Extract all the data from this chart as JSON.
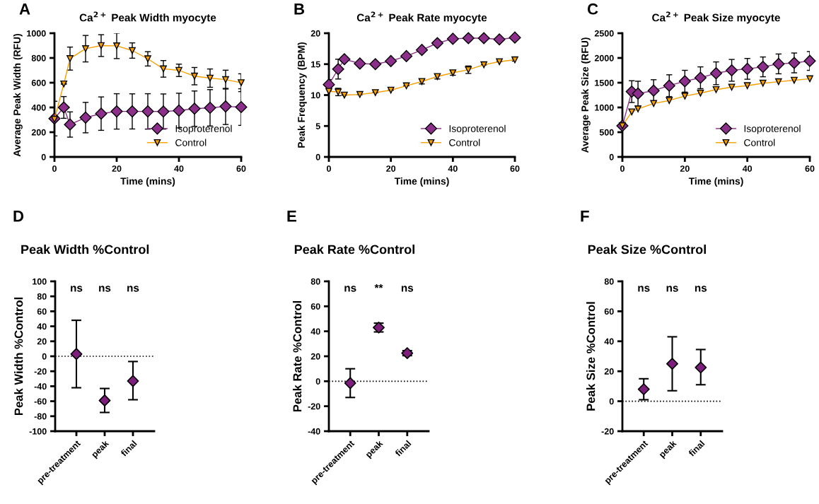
{
  "chart_data": [
    {
      "type": "line",
      "title": "Ca$^{2+}$ Peak Width myocyte",
      "xlabel": "Time (mins)",
      "ylabel": "Average Peak Width (RFU)",
      "annotations": [
        "A"
      ],
      "x": [
        0,
        3,
        5,
        10,
        15,
        20,
        25,
        30,
        35,
        40,
        45,
        50,
        55,
        60
      ],
      "xlim": [
        0,
        60
      ],
      "xticks": [
        0,
        20,
        40,
        60
      ],
      "ylim": [
        0,
        1000
      ],
      "yticks": [
        0,
        200,
        400,
        600,
        800,
        1000
      ],
      "grid": false,
      "legend": "bottom right",
      "series": [
        {
          "name": "Isoproterenol",
          "color": "#8b2f8b",
          "marker": "diamond",
          "values": [
            310,
            400,
            262,
            318,
            350,
            368,
            368,
            368,
            367,
            375,
            390,
            397,
            408,
            403
          ],
          "errors": [
            140,
            88,
            102,
            123,
            135,
            143,
            142,
            143,
            142,
            140,
            143,
            147,
            146,
            148
          ]
        },
        {
          "name": "Control",
          "color": "#f5a000",
          "marker": "triangle",
          "values": [
            305,
            590,
            795,
            875,
            900,
            898,
            860,
            793,
            712,
            700,
            653,
            637,
            625,
            600
          ],
          "errors": [
            null,
            null,
            93,
            107,
            88,
            103,
            62,
            58,
            67,
            50,
            70,
            74,
            76,
            72
          ]
        }
      ]
    },
    {
      "type": "line",
      "title": "Ca$^{2+}$ Peak Rate myocyte",
      "xlabel": "Time (mins)",
      "ylabel": "Peak Frequency (BPM)",
      "annotations": [
        "B"
      ],
      "x": [
        0,
        3,
        5,
        10,
        15,
        20,
        25,
        30,
        35,
        40,
        45,
        50,
        55,
        60
      ],
      "xlim": [
        0,
        60
      ],
      "xticks": [
        0,
        20,
        40,
        60
      ],
      "ylim": [
        0,
        20
      ],
      "yticks": [
        0,
        5,
        10,
        15,
        20
      ],
      "grid": false,
      "legend": "bottom right",
      "series": [
        {
          "name": "Isoproterenol",
          "color": "#8b2f8b",
          "marker": "diamond",
          "values": [
            11.7,
            14.2,
            15.8,
            15.1,
            15.0,
            15.5,
            16.3,
            17.3,
            18.4,
            19.1,
            19.2,
            19.2,
            19.0,
            19.3
          ],
          "errors": [
            0.8,
            1.6,
            null,
            null,
            0.4,
            null,
            null,
            null,
            null,
            null,
            0.5,
            null,
            null,
            null
          ]
        },
        {
          "name": "Control",
          "color": "#f5a000",
          "marker": "triangle",
          "values": [
            10.6,
            10.5,
            10.0,
            10.1,
            10.4,
            10.8,
            11.5,
            12.2,
            13.0,
            13.6,
            14.1,
            14.9,
            15.4,
            15.7
          ],
          "errors": [
            null,
            0.6,
            null,
            null,
            null,
            null,
            null,
            0.4,
            0.4,
            0.4,
            0.6,
            null,
            null,
            0.2
          ]
        }
      ]
    },
    {
      "type": "line",
      "title": "Ca$^{2+}$ Peak Size myocyte",
      "xlabel": "Time (mins)",
      "ylabel": "Average Peak Size (RFU)",
      "annotations": [
        "C"
      ],
      "x": [
        0,
        3,
        5,
        10,
        15,
        20,
        25,
        30,
        35,
        40,
        45,
        50,
        55,
        60
      ],
      "xlim": [
        0,
        60
      ],
      "xticks": [
        0,
        20,
        40,
        60
      ],
      "ylim": [
        0,
        2500
      ],
      "yticks": [
        0,
        500,
        1000,
        1500,
        2000,
        2500
      ],
      "grid": false,
      "legend": "bottom right",
      "series": [
        {
          "name": "Isoproterenol",
          "color": "#8b2f8b",
          "marker": "diamond",
          "values": [
            630,
            1320,
            1280,
            1340,
            1440,
            1530,
            1600,
            1690,
            1750,
            1780,
            1820,
            1880,
            1900,
            1940
          ],
          "errors": [
            null,
            220,
            250,
            220,
            220,
            220,
            220,
            230,
            220,
            210,
            200,
            200,
            200,
            190
          ]
        },
        {
          "name": "Control",
          "color": "#f5a000",
          "marker": "triangle",
          "values": [
            630,
            910,
            970,
            1080,
            1140,
            1230,
            1290,
            1360,
            1410,
            1440,
            1490,
            1520,
            1550,
            1580
          ]
        }
      ]
    },
    {
      "type": "scatter",
      "title": "Peak Width %Control",
      "ylabel": "Peak Width %Control",
      "categories": [
        "pre-treatment",
        "peak",
        "final"
      ],
      "color": "#7d1e7d",
      "marker": "diamond",
      "values": [
        3,
        -59,
        -33
      ],
      "errors": [
        [
          -42,
          48
        ],
        [
          -75,
          -43
        ],
        [
          -58,
          -7
        ]
      ],
      "ylim": [
        -100,
        100
      ],
      "yticks": [
        -100,
        -80,
        -60,
        -40,
        -20,
        0,
        20,
        40,
        60,
        80,
        100
      ],
      "grid": false,
      "ref_lines": [
        {
          "axis": "y",
          "value": 0,
          "line_style": "dotted"
        }
      ],
      "annotations": [
        "D",
        "ns",
        "ns",
        "ns"
      ]
    },
    {
      "type": "scatter",
      "title": "Peak Rate %Control",
      "ylabel": "Peak Rate %Control",
      "categories": [
        "pre-treatment",
        "peak",
        "final"
      ],
      "color": "#7d1e7d",
      "marker": "diamond",
      "values": [
        -1.5,
        43,
        22.5
      ],
      "errors": [
        [
          -13,
          10
        ],
        [
          39.5,
          46.5
        ],
        [
          20.5,
          24.5
        ]
      ],
      "ylim": [
        -40,
        80
      ],
      "yticks": [
        -40,
        -20,
        0,
        20,
        40,
        60,
        80
      ],
      "grid": false,
      "ref_lines": [
        {
          "axis": "y",
          "value": 0,
          "line_style": "dotted"
        }
      ],
      "annotations": [
        "E",
        "ns",
        "**",
        "ns"
      ]
    },
    {
      "type": "scatter",
      "title": "Peak Size %Control",
      "ylabel": "Peak Size %Control",
      "categories": [
        "pre-treatment",
        "peak",
        "final"
      ],
      "color": "#7d1e7d",
      "marker": "diamond",
      "values": [
        8,
        25,
        22.5
      ],
      "errors": [
        [
          1,
          15
        ],
        [
          7,
          43
        ],
        [
          11,
          34.5
        ]
      ],
      "ylim": [
        -20,
        80
      ],
      "yticks": [
        -20,
        0,
        20,
        40,
        60,
        80
      ],
      "grid": false,
      "ref_lines": [
        {
          "axis": "y",
          "value": 0,
          "line_style": "dotted"
        }
      ],
      "annotations": [
        "F",
        "ns",
        "ns",
        "ns"
      ]
    }
  ]
}
